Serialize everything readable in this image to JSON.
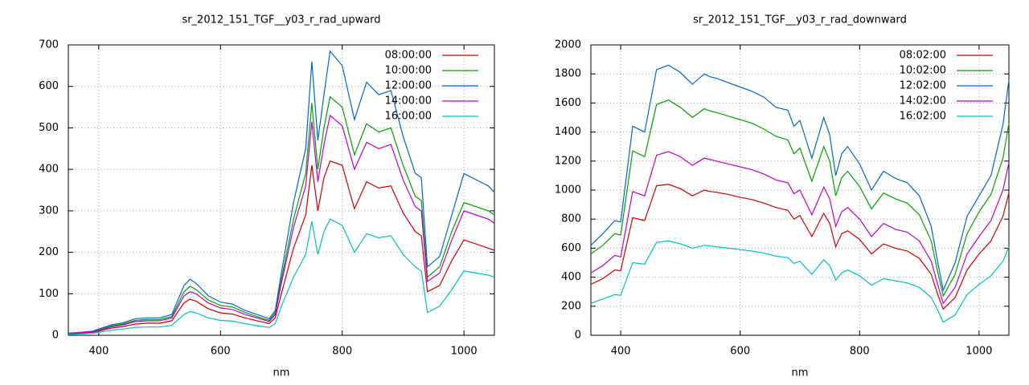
{
  "chart_data": [
    {
      "type": "line",
      "title": "sr_2012_151_TGF__y03_r_rad_upward",
      "x_label": "nm",
      "x": [
        350,
        370,
        390,
        400,
        420,
        440,
        460,
        480,
        500,
        520,
        540,
        550,
        560,
        580,
        600,
        620,
        640,
        660,
        680,
        690,
        700,
        720,
        740,
        750,
        760,
        770,
        780,
        800,
        820,
        840,
        860,
        880,
        900,
        920,
        930,
        940,
        960,
        980,
        1000,
        1020,
        1040,
        1050
      ],
      "xlim": [
        350,
        1050
      ],
      "xticks": [
        400,
        600,
        800,
        1000
      ],
      "ylim": [
        0,
        700
      ],
      "yticks": [
        0,
        100,
        200,
        300,
        400,
        500,
        600,
        700
      ],
      "grid": true,
      "legend": "top-right",
      "series": [
        {
          "name": "08:00:00",
          "color": "#cc0000",
          "values": [
            3,
            5,
            7,
            10,
            17,
            21,
            27,
            29,
            29,
            35,
            78,
            87,
            82,
            64,
            54,
            51,
            42,
            35,
            28,
            42,
            100,
            210,
            290,
            410,
            300,
            380,
            420,
            410,
            305,
            370,
            355,
            360,
            295,
            250,
            240,
            105,
            120,
            180,
            230,
            220,
            210,
            205
          ]
        },
        {
          "name": "10:00:00",
          "color": "#00a000",
          "values": [
            5,
            6,
            9,
            13,
            22,
            27,
            36,
            38,
            38,
            45,
            105,
            118,
            110,
            85,
            72,
            68,
            55,
            45,
            36,
            55,
            135,
            280,
            390,
            560,
            400,
            500,
            575,
            550,
            435,
            510,
            490,
            500,
            410,
            335,
            325,
            140,
            165,
            250,
            320,
            310,
            300,
            290
          ]
        },
        {
          "name": "12:00:00",
          "color": "#0066cc",
          "values": [
            5,
            7,
            10,
            15,
            25,
            30,
            40,
            42,
            42,
            50,
            120,
            135,
            125,
            95,
            80,
            75,
            60,
            50,
            40,
            60,
            150,
            320,
            450,
            660,
            470,
            580,
            685,
            650,
            520,
            610,
            580,
            590,
            480,
            390,
            380,
            165,
            190,
            290,
            390,
            375,
            360,
            345
          ]
        },
        {
          "name": "14:00:00",
          "color": "#c000c0",
          "values": [
            4,
            6,
            8,
            12,
            20,
            25,
            33,
            35,
            35,
            42,
            95,
            105,
            100,
            78,
            66,
            62,
            50,
            42,
            33,
            50,
            125,
            260,
            360,
            515,
            370,
            460,
            530,
            505,
            400,
            465,
            450,
            460,
            375,
            310,
            300,
            130,
            150,
            230,
            300,
            290,
            280,
            270
          ]
        },
        {
          "name": "16:00:00",
          "color": "#00c0c0",
          "values": [
            2,
            3,
            5,
            7,
            12,
            15,
            19,
            20,
            20,
            24,
            50,
            57,
            54,
            42,
            36,
            34,
            28,
            23,
            19,
            28,
            70,
            140,
            195,
            275,
            195,
            250,
            280,
            265,
            200,
            245,
            235,
            240,
            195,
            165,
            155,
            55,
            70,
            110,
            155,
            150,
            145,
            140
          ]
        }
      ]
    },
    {
      "type": "line",
      "title": "sr_2012_151_TGF__y03_r_rad_downward",
      "x_label": "nm",
      "x": [
        350,
        370,
        390,
        400,
        420,
        440,
        460,
        480,
        500,
        520,
        540,
        550,
        560,
        580,
        600,
        620,
        640,
        660,
        680,
        690,
        700,
        720,
        740,
        750,
        760,
        770,
        780,
        800,
        820,
        840,
        860,
        880,
        900,
        920,
        930,
        940,
        960,
        980,
        1000,
        1020,
        1040,
        1050
      ],
      "xlim": [
        350,
        1050
      ],
      "xticks": [
        400,
        600,
        800,
        1000
      ],
      "ylim": [
        0,
        2000
      ],
      "yticks": [
        0,
        200,
        400,
        600,
        800,
        1000,
        1200,
        1400,
        1600,
        1800,
        2000
      ],
      "grid": true,
      "legend": "top-right",
      "series": [
        {
          "name": "08:02:00",
          "color": "#cc0000",
          "values": [
            350,
            390,
            450,
            445,
            810,
            790,
            1030,
            1040,
            1010,
            960,
            1000,
            990,
            985,
            970,
            950,
            935,
            910,
            880,
            860,
            800,
            825,
            680,
            840,
            770,
            610,
            700,
            720,
            660,
            560,
            630,
            600,
            580,
            530,
            420,
            290,
            180,
            260,
            450,
            560,
            650,
            820,
            980
          ]
        },
        {
          "name": "10:02:00",
          "color": "#00a000",
          "values": [
            560,
            620,
            700,
            690,
            1270,
            1230,
            1590,
            1620,
            1570,
            1500,
            1560,
            1545,
            1535,
            1510,
            1485,
            1460,
            1420,
            1370,
            1345,
            1250,
            1290,
            1060,
            1300,
            1200,
            960,
            1085,
            1130,
            1025,
            870,
            980,
            940,
            910,
            830,
            650,
            450,
            270,
            420,
            700,
            850,
            970,
            1220,
            1460
          ]
        },
        {
          "name": "12:02:00",
          "color": "#0066cc",
          "values": [
            620,
            700,
            790,
            780,
            1440,
            1400,
            1830,
            1860,
            1810,
            1730,
            1800,
            1780,
            1770,
            1740,
            1710,
            1680,
            1640,
            1570,
            1550,
            1440,
            1480,
            1220,
            1500,
            1380,
            1100,
            1250,
            1300,
            1180,
            1000,
            1130,
            1080,
            1050,
            960,
            750,
            520,
            310,
            500,
            820,
            960,
            1100,
            1450,
            1760
          ]
        },
        {
          "name": "14:02:00",
          "color": "#c000c0",
          "values": [
            430,
            480,
            550,
            540,
            990,
            960,
            1240,
            1265,
            1230,
            1170,
            1220,
            1210,
            1200,
            1180,
            1160,
            1140,
            1110,
            1070,
            1050,
            975,
            1000,
            830,
            1020,
            940,
            750,
            850,
            880,
            800,
            680,
            770,
            730,
            710,
            650,
            510,
            360,
            220,
            330,
            560,
            680,
            790,
            1000,
            1190
          ]
        },
        {
          "name": "16:02:00",
          "color": "#00c0c0",
          "values": [
            220,
            250,
            280,
            275,
            500,
            490,
            640,
            650,
            630,
            600,
            620,
            615,
            610,
            600,
            590,
            580,
            565,
            545,
            535,
            495,
            510,
            420,
            520,
            480,
            380,
            430,
            450,
            410,
            345,
            390,
            375,
            360,
            330,
            260,
            180,
            90,
            140,
            280,
            350,
            410,
            510,
            610
          ]
        }
      ]
    }
  ]
}
